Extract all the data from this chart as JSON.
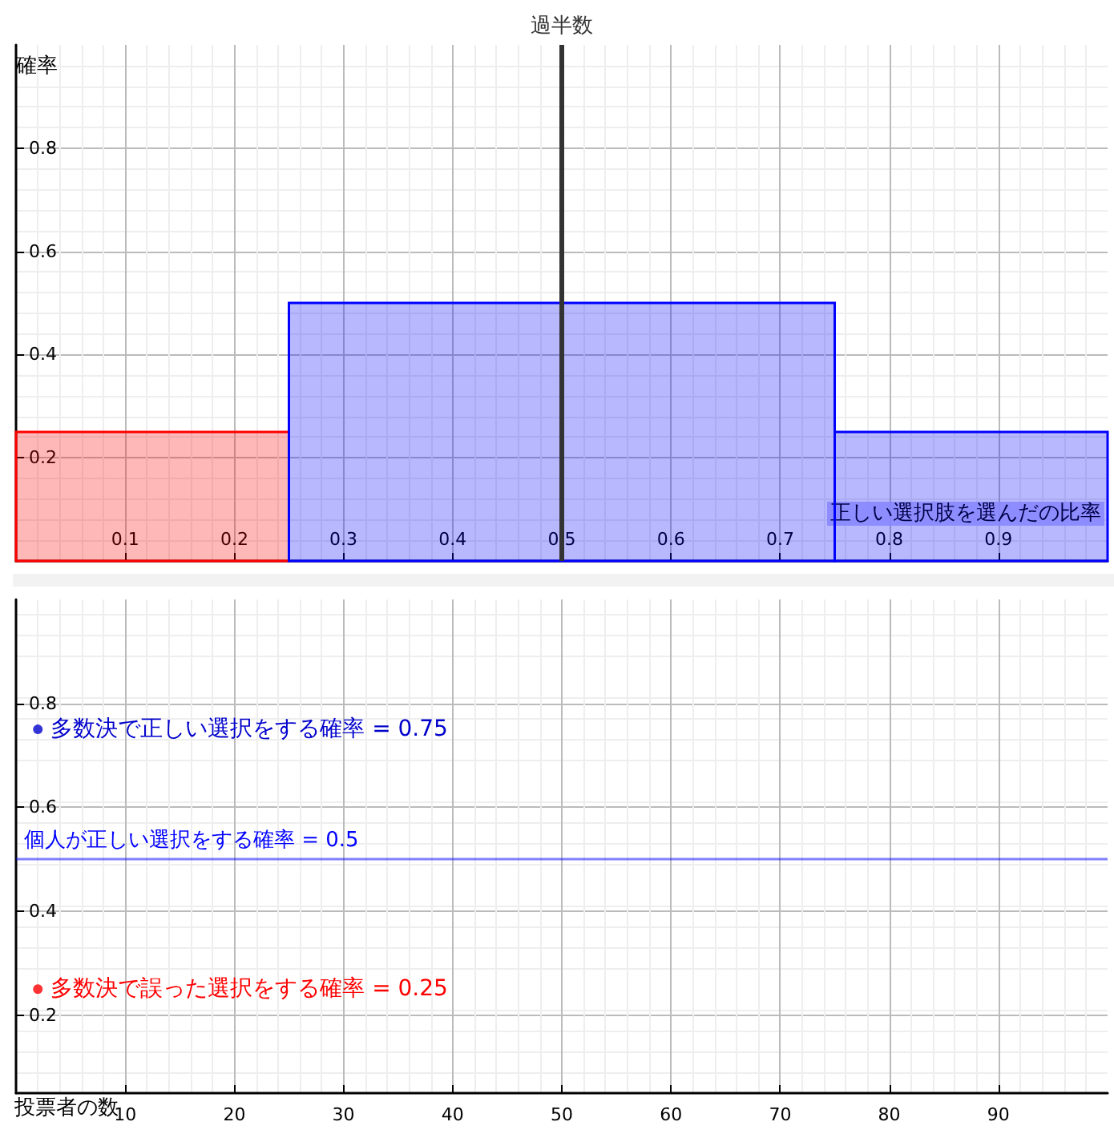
{
  "chart_data": [
    {
      "type": "histogram",
      "xlabel": "正しい選択肢を選んだの比率",
      "ylabel": "確率",
      "bins": [
        0,
        0.25,
        0.75,
        1
      ],
      "values": [
        0.25,
        0.5,
        0.25
      ],
      "colors": [
        "#ff0000",
        "#0000ff",
        "#0000ff"
      ],
      "xlim": [
        0,
        1
      ],
      "ylim": [
        0,
        1
      ],
      "xticks": [
        0.1,
        0.2,
        0.3,
        0.4,
        0.5,
        0.6,
        0.7,
        0.8,
        0.9
      ],
      "yticks": [
        0.2,
        0.4,
        0.6,
        0.8
      ],
      "grid": true,
      "ref_lines": [
        {
          "axis": "x",
          "value": 0.5,
          "label": "過半数",
          "color": "#333333"
        }
      ]
    },
    {
      "type": "scatter",
      "xlabel": "投票者の数",
      "series": [
        {
          "x": [
            2,
            2
          ],
          "values": [
            0.75,
            0.25
          ],
          "colors": [
            "#0000cc",
            "#ff0000"
          ]
        }
      ],
      "xlim": [
        0,
        100
      ],
      "ylim": [
        0.05,
        1
      ],
      "xticks": [
        10,
        20,
        30,
        40,
        50,
        60,
        70,
        80,
        90
      ],
      "yticks": [
        0.2,
        0.4,
        0.6,
        0.8
      ],
      "grid": true,
      "marker": "circle",
      "ref_lines": [
        {
          "axis": "y",
          "value": 0.5,
          "label": "個人が正しい選択をする確率 = 0.5",
          "color": "#0000ff"
        }
      ],
      "annotations": [
        {
          "text": "多数決で正しい選択をする確率 = 0.75",
          "x": 2,
          "y": 0.75
        },
        {
          "text": "多数決で誤った選択をする確率 = 0.25",
          "x": 2,
          "y": 0.25
        }
      ]
    }
  ]
}
